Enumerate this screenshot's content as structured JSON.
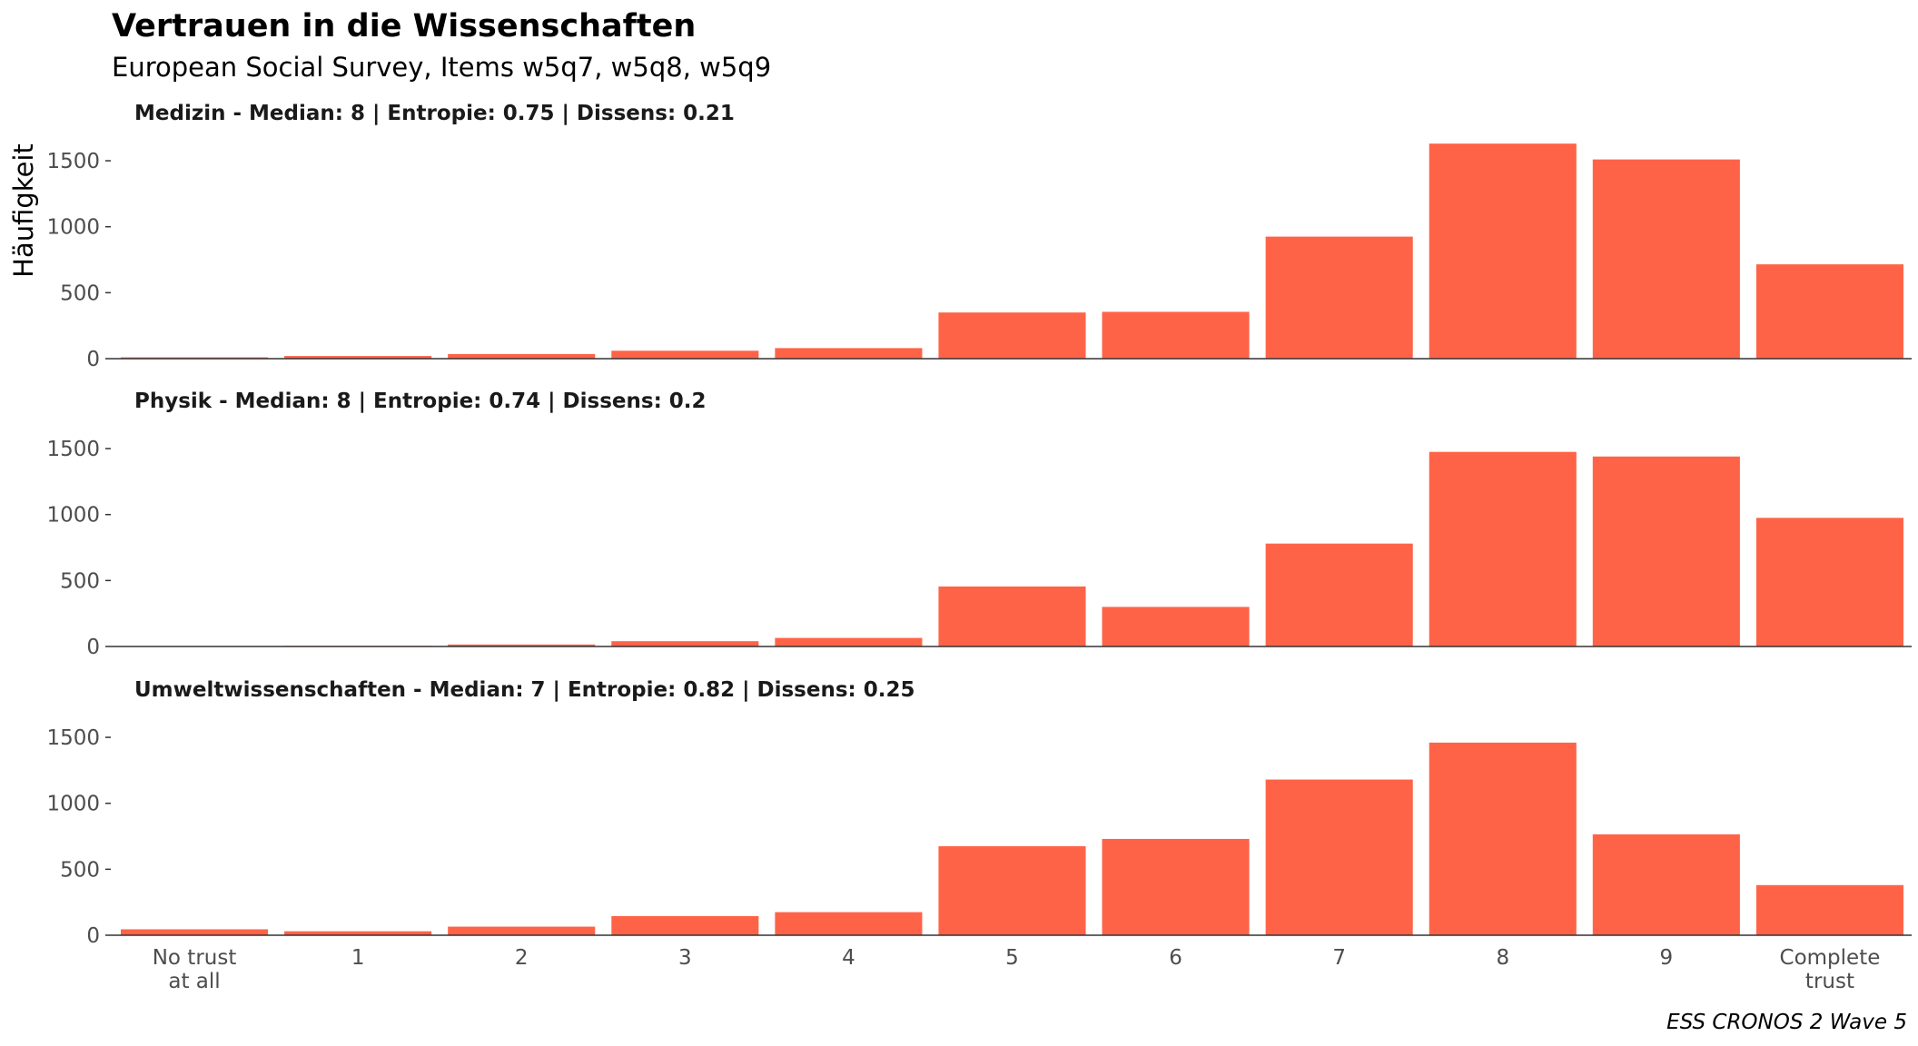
{
  "title": "Vertrauen in die Wissenschaften",
  "subtitle": "European Social Survey, Items w5q7, w5q8, w5q9",
  "caption": "ESS CRONOS 2 Wave 5",
  "colors": {
    "bar": "#FF6347",
    "axis": "#333333",
    "tick_text": "#4d4d4d"
  },
  "chart_data": {
    "type": "bar",
    "ylabel": "Häufigkeit",
    "xlabel": "",
    "categories": [
      "No trust\nat all",
      "1",
      "2",
      "3",
      "4",
      "5",
      "6",
      "7",
      "8",
      "9",
      "Complete\ntrust"
    ],
    "ylim": [
      0,
      1700
    ],
    "yticks": [
      0,
      500,
      1000,
      1500
    ],
    "grid": false,
    "facets": [
      {
        "label": "Medizin - Median: 8 | Entropie: 0.75 | Dissens: 0.21",
        "values": [
          10,
          20,
          35,
          60,
          80,
          350,
          355,
          925,
          1630,
          1510,
          715
        ]
      },
      {
        "label": "Physik - Median: 8 | Entropie: 0.74 | Dissens: 0.2",
        "values": [
          3,
          5,
          15,
          40,
          65,
          455,
          300,
          780,
          1475,
          1440,
          975
        ]
      },
      {
        "label": "Umweltwissenschaften - Median: 7 | Entropie: 0.82 | Dissens: 0.25",
        "values": [
          45,
          30,
          65,
          145,
          175,
          675,
          730,
          1180,
          1460,
          765,
          380
        ]
      }
    ]
  }
}
